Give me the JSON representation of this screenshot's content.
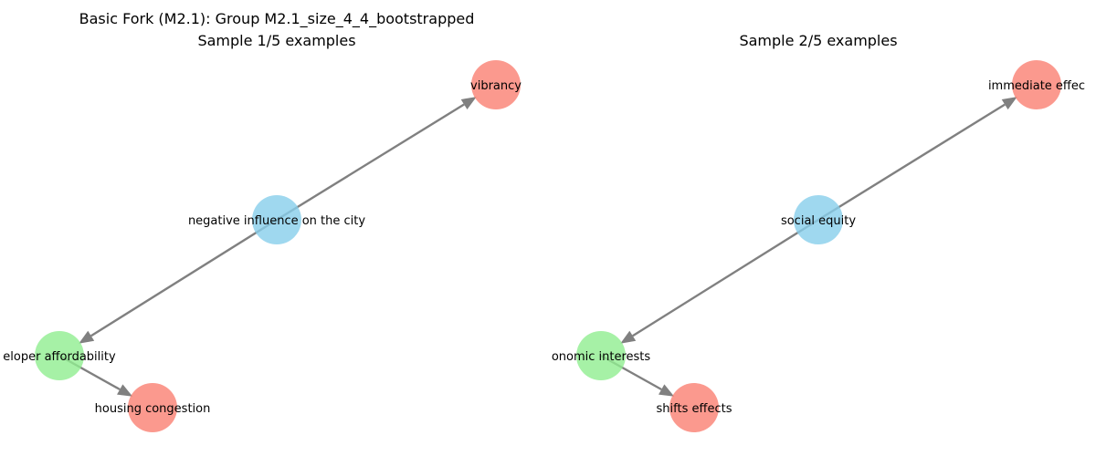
{
  "figure": {
    "panels": [
      {
        "title_lines": [
          "Basic Fork (M2.1): Group M2.1_size_4_4_bootstrapped",
          "Sample 1/5 examples"
        ],
        "nodes": [
          {
            "id": "top",
            "label": "vibrancy",
            "color": "#fa8072"
          },
          {
            "id": "mid",
            "label": "negative influence on the city",
            "color": "#87ceeb"
          },
          {
            "id": "left",
            "label": "eloper affordability",
            "color": "#90ee90"
          },
          {
            "id": "bottom",
            "label": "housing congestion",
            "color": "#fa8072"
          }
        ],
        "edges": [
          {
            "from": "mid",
            "to": "top"
          },
          {
            "from": "mid",
            "to": "left"
          },
          {
            "from": "left",
            "to": "bottom"
          }
        ]
      },
      {
        "title_lines": [
          "Sample 2/5 examples"
        ],
        "nodes": [
          {
            "id": "top",
            "label": "immediate effec",
            "color": "#fa8072"
          },
          {
            "id": "mid",
            "label": "social equity",
            "color": "#87ceeb"
          },
          {
            "id": "left",
            "label": "onomic interests",
            "color": "#90ee90"
          },
          {
            "id": "bottom",
            "label": "shifts effects",
            "color": "#fa8072"
          }
        ],
        "edges": [
          {
            "from": "mid",
            "to": "top"
          },
          {
            "from": "mid",
            "to": "left"
          },
          {
            "from": "left",
            "to": "bottom"
          }
        ]
      }
    ]
  }
}
